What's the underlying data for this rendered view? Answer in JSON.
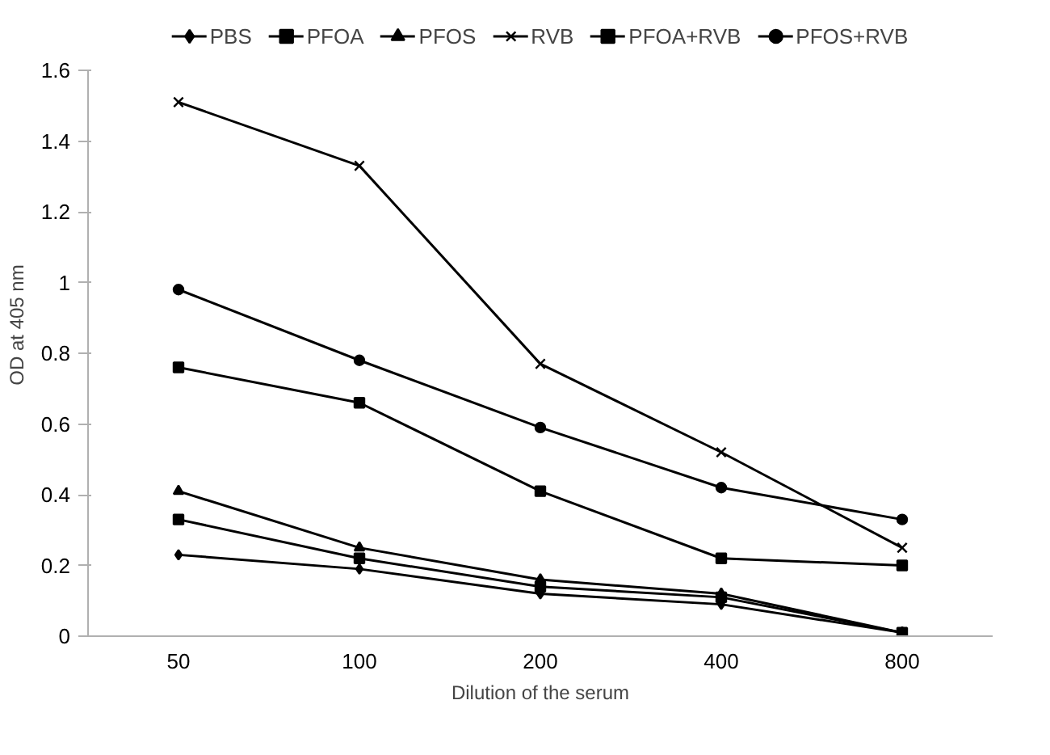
{
  "chart_data": {
    "type": "line",
    "xlabel": "Dilution of the serum",
    "ylabel": "OD at 405 nm",
    "categories": [
      "50",
      "100",
      "200",
      "400",
      "800"
    ],
    "series": [
      {
        "name": "PBS",
        "color": "#000000",
        "marker": "diamond",
        "values": [
          0.23,
          0.19,
          0.12,
          0.09,
          0.01
        ]
      },
      {
        "name": "PFOA",
        "color": "#000000",
        "marker": "square",
        "values": [
          0.33,
          0.22,
          0.14,
          0.11,
          0.01
        ]
      },
      {
        "name": "PFOS",
        "color": "#000000",
        "marker": "triangle",
        "values": [
          0.41,
          0.25,
          0.16,
          0.12,
          0.01
        ]
      },
      {
        "name": "RVB",
        "color": "#000000",
        "marker": "cross",
        "values": [
          1.51,
          1.33,
          0.77,
          0.52,
          0.25
        ]
      },
      {
        "name": "PFOA+RVB",
        "color": "#000000",
        "marker": "square",
        "values": [
          0.76,
          0.66,
          0.41,
          0.22,
          0.2
        ]
      },
      {
        "name": "PFOS+RVB",
        "color": "#000000",
        "marker": "circle",
        "values": [
          0.98,
          0.78,
          0.59,
          0.42,
          0.33
        ]
      }
    ],
    "ylim": [
      0,
      1.6
    ],
    "yticks": [
      0,
      0.2,
      0.4,
      0.6,
      0.8,
      1,
      1.2,
      1.4,
      1.6
    ],
    "grid": false,
    "legend": "top",
    "line_style": "solid"
  }
}
